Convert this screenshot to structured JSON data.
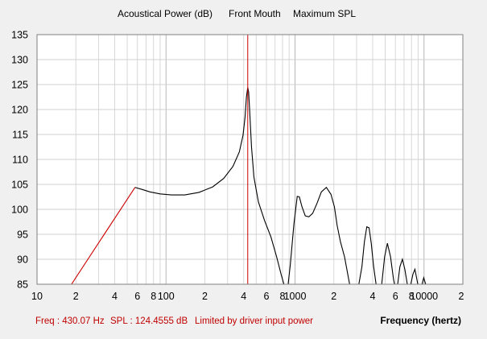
{
  "chart_data": {
    "type": "line",
    "title_parts": [
      "Acoustical Power (dB)",
      "Front Mouth",
      "Maximum SPL"
    ],
    "xlabel": "Frequency (hertz)",
    "ylabel": "",
    "x_scale": "log",
    "xlim": [
      10,
      20000
    ],
    "ylim": [
      85,
      135
    ],
    "y_ticks": [
      85,
      90,
      95,
      100,
      105,
      110,
      115,
      120,
      125,
      130,
      135
    ],
    "x_ticks": [
      {
        "value": 10,
        "label": "10"
      },
      {
        "value": 20,
        "label": "2"
      },
      {
        "value": 40,
        "label": "4"
      },
      {
        "value": 60,
        "label": "6"
      },
      {
        "value": 80,
        "label": "8"
      },
      {
        "value": 100,
        "label": "100"
      },
      {
        "value": 200,
        "label": "2"
      },
      {
        "value": 400,
        "label": "4"
      },
      {
        "value": 600,
        "label": "6"
      },
      {
        "value": 800,
        "label": "8"
      },
      {
        "value": 1000,
        "label": "1000"
      },
      {
        "value": 2000,
        "label": "2"
      },
      {
        "value": 4000,
        "label": "4"
      },
      {
        "value": 6000,
        "label": "6"
      },
      {
        "value": 8000,
        "label": "8"
      },
      {
        "value": 10000,
        "label": "10000"
      },
      {
        "value": 20000,
        "label": "2"
      }
    ],
    "grid": true,
    "marker_freq": 430.07,
    "series": [
      {
        "color": "#cc0000",
        "x": [
          18.5,
          57.5
        ],
        "y": [
          85.0,
          104.4
        ]
      },
      {
        "color": "#000000",
        "x": [
          57.5,
          65,
          75,
          90,
          110,
          140,
          180,
          230,
          280,
          330,
          370,
          395,
          410,
          420,
          430,
          437,
          445,
          460,
          480,
          520,
          580,
          650,
          720,
          780,
          820,
          840,
          860,
          880,
          920,
          980,
          1040,
          1080,
          1130,
          1200,
          1280,
          1370,
          1480,
          1600,
          1750,
          1900,
          2020,
          2120,
          2250,
          2420,
          2650,
          2900,
          3100,
          3300,
          3450,
          3600,
          3750,
          3900,
          4060,
          4250,
          4480,
          4700,
          4950,
          5200,
          5500,
          5800,
          6020,
          6250,
          6500,
          6800,
          7100,
          7420,
          7650,
          7900,
          8200,
          8500,
          8800,
          9100,
          9350,
          9650,
          9950,
          10300,
          10600
        ],
        "y": [
          104.4,
          104.0,
          103.5,
          103.1,
          102.9,
          102.9,
          103.4,
          104.5,
          106.2,
          108.6,
          111.5,
          114.8,
          118.5,
          122.5,
          124.4,
          123.5,
          119.8,
          112.5,
          106.5,
          101.5,
          97.8,
          94.5,
          90.5,
          87.0,
          85.0,
          84.0,
          84.0,
          84.5,
          89.0,
          97.0,
          102.6,
          102.5,
          100.6,
          98.7,
          98.5,
          99.2,
          101.2,
          103.5,
          104.4,
          103.0,
          100.5,
          96.8,
          93.5,
          90.5,
          85.0,
          84.0,
          84.5,
          88.5,
          93.5,
          96.5,
          96.3,
          93.2,
          88.7,
          85.0,
          84.0,
          85.0,
          90.5,
          93.2,
          90.5,
          86.0,
          84.0,
          85.0,
          88.5,
          90.0,
          88.0,
          85.0,
          84.0,
          85.0,
          87.0,
          88.0,
          86.0,
          84.0,
          84.0,
          85.0,
          86.3,
          85.0,
          84.0
        ]
      }
    ]
  },
  "status": {
    "freq": "Freq : 430.07 Hz",
    "spl": "SPL : 124.4555 dB",
    "message": "Limited by driver input power"
  },
  "colors": {
    "background": "#f0f0f0",
    "plot_background": "#ffffff",
    "grid": "#cccccc",
    "status_text": "#c00000",
    "marker_line": "#cc0000"
  }
}
